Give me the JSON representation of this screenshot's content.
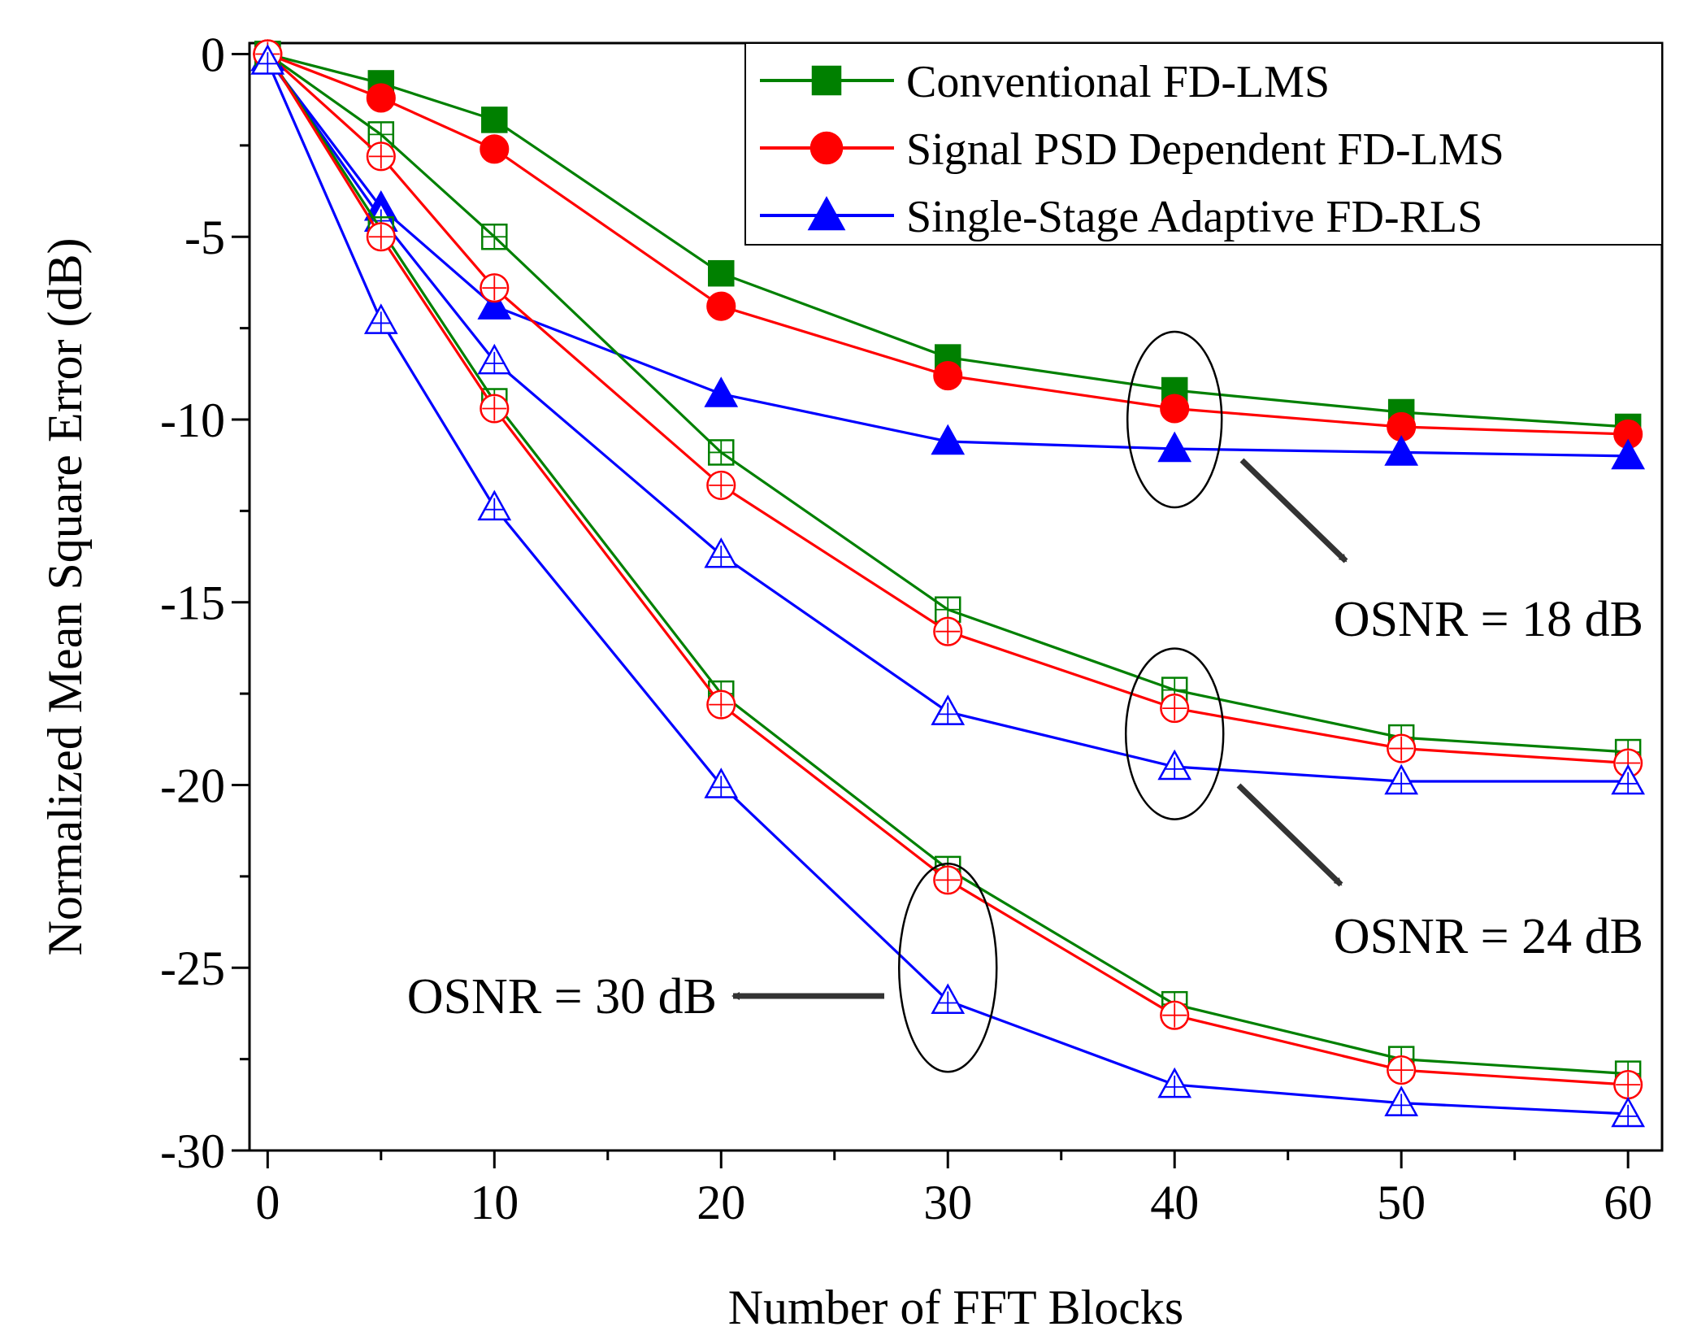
{
  "chart_data": {
    "type": "line",
    "xlabel": "Number of FFT Blocks",
    "ylabel": "Normalized Mean Square Error (dB)",
    "xlim": [
      -0.8,
      61.5
    ],
    "ylim": [
      -30,
      0.3
    ],
    "xticks": [
      0,
      10,
      20,
      30,
      40,
      50,
      60
    ],
    "xtick_labels": [
      "0",
      "10",
      "20",
      "30",
      "40",
      "50",
      "60"
    ],
    "yticks": [
      0,
      -5,
      -10,
      -15,
      -20,
      -25,
      -30
    ],
    "ytick_labels": [
      "0",
      "-5",
      "-10",
      "-15",
      "-20",
      "-25",
      "-30"
    ],
    "grid": false,
    "legend_position": "top-right",
    "x": [
      0,
      5,
      10,
      20,
      30,
      40,
      50,
      60
    ],
    "legend": [
      {
        "name": "Conventional FD-LMS",
        "color": "#008000",
        "marker": "square"
      },
      {
        "name": "Signal PSD Dependent FD-LMS",
        "color": "#ff0000",
        "marker": "circle"
      },
      {
        "name": "Single-Stage Adaptive FD-RLS",
        "color": "#0000ff",
        "marker": "triangle"
      }
    ],
    "series": [
      {
        "osnr": "18",
        "method": 0,
        "color": "#008000",
        "marker": "square",
        "filled": true,
        "values": [
          0,
          -0.8,
          -1.8,
          -6.0,
          -8.3,
          -9.2,
          -9.8,
          -10.2
        ]
      },
      {
        "osnr": "18",
        "method": 1,
        "color": "#ff0000",
        "marker": "circle",
        "filled": true,
        "values": [
          0,
          -1.2,
          -2.6,
          -6.9,
          -8.8,
          -9.7,
          -10.2,
          -10.4
        ]
      },
      {
        "osnr": "18",
        "method": 2,
        "color": "#0000ff",
        "marker": "triangle",
        "filled": true,
        "values": [
          -0.1,
          -4.2,
          -6.9,
          -9.3,
          -10.6,
          -10.8,
          -10.9,
          -11.0
        ]
      },
      {
        "osnr": "24",
        "method": 0,
        "color": "#008000",
        "marker": "square",
        "filled": false,
        "values": [
          0,
          -2.2,
          -5.0,
          -10.9,
          -15.2,
          -17.4,
          -18.7,
          -19.1
        ]
      },
      {
        "osnr": "24",
        "method": 1,
        "color": "#ff0000",
        "marker": "circle",
        "filled": false,
        "values": [
          0,
          -2.8,
          -6.4,
          -11.8,
          -15.8,
          -17.9,
          -19.0,
          -19.4
        ]
      },
      {
        "osnr": "24",
        "method": 2,
        "color": "#0000ff",
        "marker": "triangle",
        "filled": false,
        "values": [
          -0.1,
          -4.5,
          -8.4,
          -13.7,
          -18.0,
          -19.5,
          -19.9,
          -19.9
        ]
      },
      {
        "osnr": "30",
        "method": 0,
        "color": "#008000",
        "marker": "square",
        "filled": false,
        "values": [
          0,
          -4.8,
          -9.5,
          -17.5,
          -22.3,
          -26.0,
          -27.5,
          -27.9
        ]
      },
      {
        "osnr": "30",
        "method": 1,
        "color": "#ff0000",
        "marker": "circle",
        "filled": false,
        "values": [
          0,
          -5.0,
          -9.7,
          -17.8,
          -22.6,
          -26.3,
          -27.8,
          -28.2
        ]
      },
      {
        "osnr": "30",
        "method": 2,
        "color": "#0000ff",
        "marker": "triangle",
        "filled": false,
        "values": [
          -0.2,
          -7.3,
          -12.4,
          -20.0,
          -25.9,
          -28.2,
          -28.7,
          -29.0
        ]
      }
    ],
    "annotations": [
      {
        "text": "OSNR = 18 dB",
        "ellipse_at": {
          "x": 40,
          "y": -10.0
        }
      },
      {
        "text": "OSNR = 24 dB",
        "ellipse_at": {
          "x": 40,
          "y": -18.6
        }
      },
      {
        "text": "OSNR = 30 dB",
        "ellipse_at": {
          "x": 30,
          "y": -25.0
        }
      }
    ]
  }
}
